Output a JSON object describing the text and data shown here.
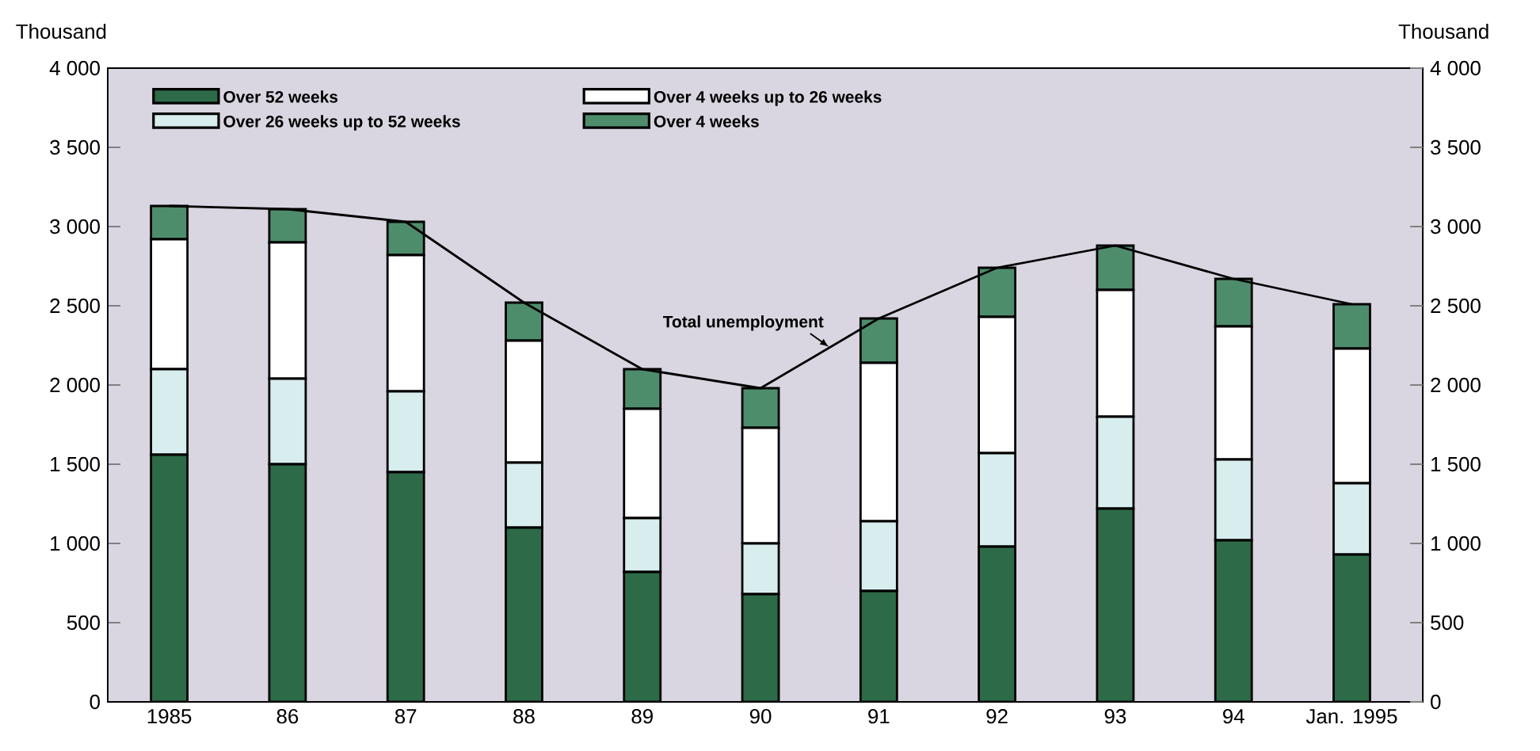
{
  "chart_data": {
    "type": "bar",
    "stacked": true,
    "legend": "top",
    "marker": "none",
    "categories": [
      "1985",
      "86",
      "87",
      "88",
      "89",
      "90",
      "91",
      "92",
      "93",
      "94",
      "Jan. 1995"
    ],
    "ylabel": "Thousand",
    "y2label": "Thousand",
    "ylim": [
      0,
      4000
    ],
    "yticks": [
      0,
      500,
      {
        "value": 1000,
        "label": "1 000"
      },
      {
        "value": 1500,
        "label": "1 500"
      },
      {
        "value": 2000,
        "label": "2 000"
      },
      {
        "value": 2500,
        "label": "2 500"
      },
      {
        "value": 3000,
        "label": "3 000"
      },
      {
        "value": 3500,
        "label": "3 500"
      },
      {
        "value": 4000,
        "label": "4 000"
      }
    ],
    "y2lim": [
      0,
      4000
    ],
    "y2ticks": [
      0,
      500,
      {
        "value": 1000,
        "label": "1 000"
      },
      {
        "value": 1500,
        "label": "1 500"
      },
      {
        "value": 2000,
        "label": "2 000"
      },
      {
        "value": 2500,
        "label": "2 500"
      },
      {
        "value": 3000,
        "label": "3 000"
      },
      {
        "value": 3500,
        "label": "3 500"
      },
      {
        "value": 4000,
        "label": "4 000"
      }
    ],
    "series": [
      {
        "name": "Over 52 weeks",
        "color": "#2d6a48",
        "values": [
          1560,
          1500,
          1450,
          1100,
          820,
          680,
          700,
          980,
          1220,
          1020,
          930
        ]
      },
      {
        "name": "Over 26 weeks up to 52 weeks",
        "color": "#d8eeee",
        "values": [
          540,
          540,
          510,
          410,
          340,
          320,
          440,
          590,
          580,
          510,
          450
        ]
      },
      {
        "name": "Over 4 weeks up to 26 weeks",
        "color": "#ffffff",
        "values": [
          820,
          860,
          860,
          770,
          690,
          730,
          1000,
          860,
          800,
          840,
          850
        ]
      },
      {
        "name": "Over 4 weeks",
        "color": "#4e8d6c",
        "values": [
          210,
          210,
          210,
          240,
          250,
          250,
          280,
          310,
          280,
          300,
          280
        ]
      },
      {
        "name": "Total unemployment",
        "type": "line",
        "axis": "y2",
        "color": "#000000",
        "values": [
          3130,
          3110,
          3030,
          2520,
          2100,
          1980,
          2420,
          2740,
          2880,
          2670,
          2510
        ]
      }
    ]
  }
}
